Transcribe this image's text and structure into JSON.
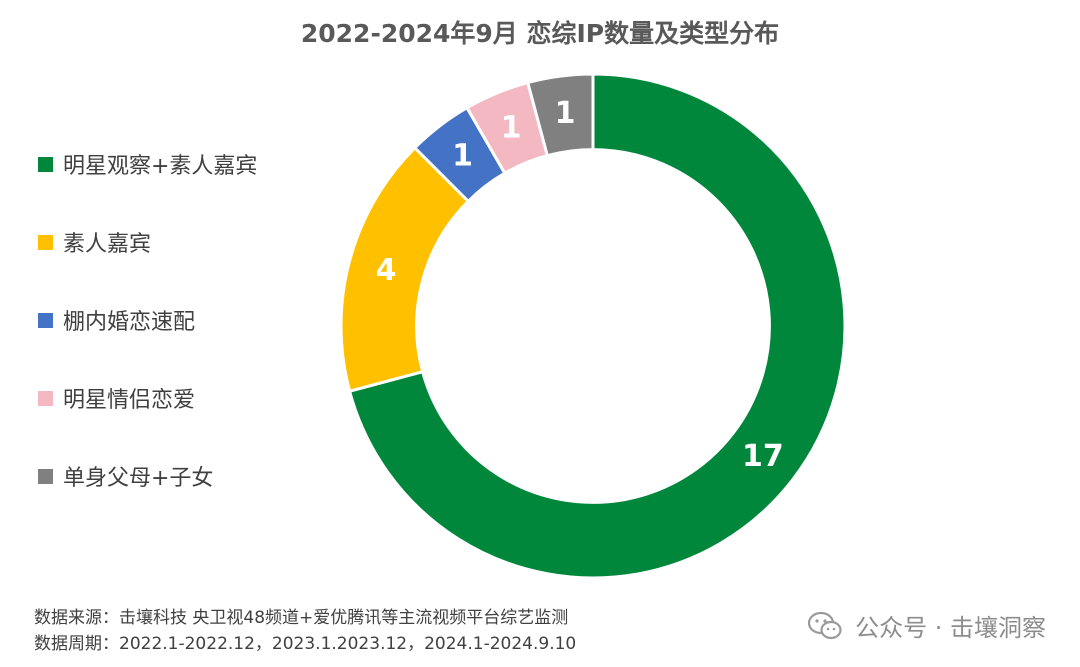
{
  "chart_data": {
    "type": "pie",
    "title": "2022-2024年9月 恋综IP数量及类型分布",
    "categories": [
      "明星观察+素人嘉宾",
      "素人嘉宾",
      "棚内婚恋速配",
      "明星情侣恋爱",
      "单身父母+子女"
    ],
    "values": [
      17,
      4,
      1,
      1,
      1
    ],
    "colors": [
      "#00873c",
      "#ffc000",
      "#4472c4",
      "#f4b8c3",
      "#808080"
    ],
    "data_label_color": "#ffffff",
    "legend_position": "left",
    "hole": 0.7
  },
  "footer": {
    "line1": "数据来源：击壤科技  央卫视48频道+爱优腾讯等主流视频平台综艺监测",
    "line2": "数据周期：2022.1-2022.12，2023.1.2023.12，2024.1-2024.9.10"
  },
  "watermark": {
    "text": "公众号 · 击壤洞察",
    "icon": "wechat-icon"
  }
}
